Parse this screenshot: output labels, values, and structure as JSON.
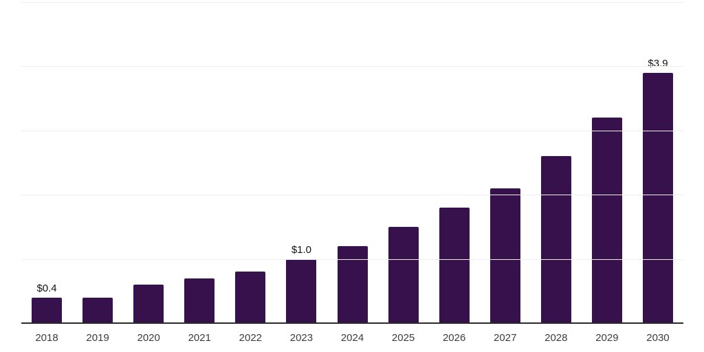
{
  "chart_data": {
    "type": "bar",
    "title": "",
    "xlabel": "",
    "ylabel": "",
    "categories": [
      "2018",
      "2019",
      "2020",
      "2021",
      "2022",
      "2023",
      "2024",
      "2025",
      "2026",
      "2027",
      "2028",
      "2029",
      "2030"
    ],
    "values": [
      0.4,
      0.4,
      0.6,
      0.7,
      0.8,
      1.0,
      1.2,
      1.5,
      1.8,
      2.1,
      2.6,
      3.2,
      3.9
    ],
    "value_prefix": "$",
    "annotations": [
      {
        "category": "2018",
        "text": "$0.4"
      },
      {
        "category": "2023",
        "text": "$1.0"
      },
      {
        "category": "2030",
        "text": "$3.9"
      }
    ],
    "ylim": [
      0,
      5
    ],
    "gridline_values": [
      1,
      2,
      3,
      4,
      5
    ],
    "grid": "horizontal",
    "legend": "none",
    "colors": {
      "bar": "#36114C",
      "axis_line": "#2b2b2b",
      "gridline": "#efefef",
      "bar_label_text": "#111111",
      "x_label_text": "#3c3c3c",
      "background": "#ffffff"
    }
  }
}
